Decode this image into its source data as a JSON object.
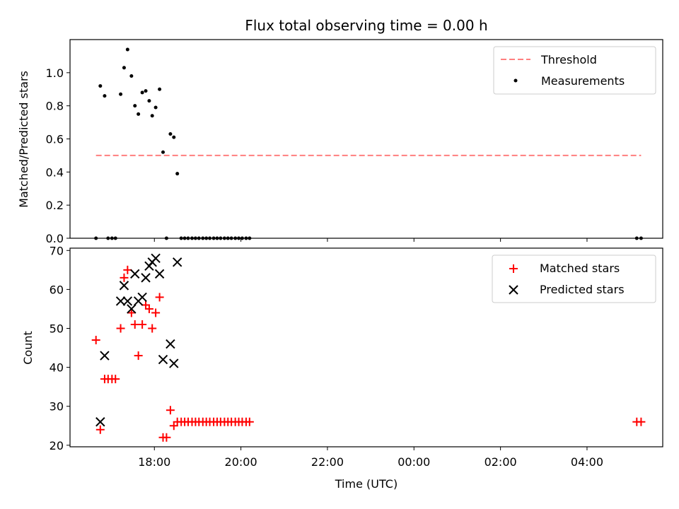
{
  "chart_data": {
    "title": "Flux total observing time = 0.00 h",
    "xlabel": "Time (UTC)",
    "x_tick_labels": [
      "18:00",
      "20:00",
      "22:00",
      "00:00",
      "02:00",
      "04:00"
    ],
    "x_ticks_hours": [
      18,
      20,
      22,
      24,
      26,
      28
    ],
    "xlim_hours": [
      16.05,
      29.75
    ],
    "panels": [
      {
        "type": "scatter",
        "ylabel": "Matched/Predicted stars",
        "ylim": [
          0,
          1.2
        ],
        "y_ticks": [
          0.0,
          0.2,
          0.4,
          0.6,
          0.8,
          1.0
        ],
        "y_tick_labels": [
          "0.0",
          "0.2",
          "0.4",
          "0.6",
          "0.8",
          "1.0"
        ],
        "legend_position": "upper right",
        "threshold": {
          "name": "Threshold",
          "value": 0.5,
          "x_range": [
            16.65,
            29.25
          ],
          "color": "#ff7f7f",
          "style": "dashed"
        },
        "series": [
          {
            "name": "Measurements",
            "marker": "dot",
            "color": "#000000",
            "x": [
              16.65,
              16.75,
              16.85,
              16.93,
              17.02,
              17.1,
              17.22,
              17.3,
              17.38,
              17.47,
              17.55,
              17.63,
              17.72,
              17.8,
              17.88,
              17.95,
              18.03,
              18.12,
              18.2,
              18.28,
              18.37,
              18.45,
              18.53,
              18.62,
              18.7,
              18.78,
              18.87,
              18.95,
              19.03,
              19.12,
              19.2,
              19.28,
              19.37,
              19.45,
              19.53,
              19.62,
              19.7,
              19.78,
              19.87,
              19.95,
              20.03,
              20.12,
              20.2,
              29.15,
              29.25
            ],
            "y": [
              0.0,
              0.92,
              0.86,
              0.0,
              0.0,
              0.0,
              0.87,
              1.03,
              1.14,
              0.98,
              0.8,
              0.75,
              0.88,
              0.89,
              0.83,
              0.74,
              0.79,
              0.9,
              0.52,
              0.0,
              0.63,
              0.61,
              0.39,
              0.0,
              0.0,
              0.0,
              0.0,
              0.0,
              0.0,
              0.0,
              0.0,
              0.0,
              0.0,
              0.0,
              0.0,
              0.0,
              0.0,
              0.0,
              0.0,
              0.0,
              0.0,
              0.0,
              0.0,
              0.0,
              0.0
            ]
          }
        ]
      },
      {
        "type": "scatter",
        "ylabel": "Count",
        "ylim": [
          19.6,
          70.6
        ],
        "y_ticks": [
          20,
          30,
          40,
          50,
          60,
          70
        ],
        "y_tick_labels": [
          "20",
          "30",
          "40",
          "50",
          "60",
          "70"
        ],
        "legend_position": "upper right",
        "series": [
          {
            "name": "Matched stars",
            "marker": "plus",
            "color": "#ff0000",
            "x": [
              16.65,
              16.75,
              16.85,
              16.93,
              17.02,
              17.1,
              17.22,
              17.3,
              17.38,
              17.47,
              17.55,
              17.63,
              17.72,
              17.8,
              17.88,
              17.95,
              18.03,
              18.12,
              18.2,
              18.28,
              18.37,
              18.45,
              18.53,
              18.62,
              18.7,
              18.78,
              18.87,
              18.95,
              19.03,
              19.12,
              19.2,
              19.28,
              19.37,
              19.45,
              19.53,
              19.62,
              19.7,
              19.78,
              19.87,
              19.95,
              20.03,
              20.12,
              20.2,
              29.15,
              29.25
            ],
            "y": [
              47,
              24,
              37,
              37,
              37,
              37,
              50,
              63,
              65,
              54,
              51,
              43,
              51,
              56,
              55,
              50,
              54,
              58,
              22,
              22,
              29,
              25,
              26,
              26,
              26,
              26,
              26,
              26,
              26,
              26,
              26,
              26,
              26,
              26,
              26,
              26,
              26,
              26,
              26,
              26,
              26,
              26,
              26,
              26,
              26
            ]
          },
          {
            "name": "Predicted stars",
            "marker": "x",
            "color": "#000000",
            "x": [
              16.75,
              16.85,
              17.22,
              17.3,
              17.38,
              17.47,
              17.55,
              17.63,
              17.72,
              17.8,
              17.88,
              17.95,
              18.03,
              18.12,
              18.2,
              18.37,
              18.45,
              18.53
            ],
            "y": [
              26,
              43,
              57,
              61,
              57,
              55,
              64,
              57,
              58,
              63,
              66,
              67,
              68,
              64,
              42,
              46,
              41,
              67
            ]
          }
        ]
      }
    ]
  }
}
